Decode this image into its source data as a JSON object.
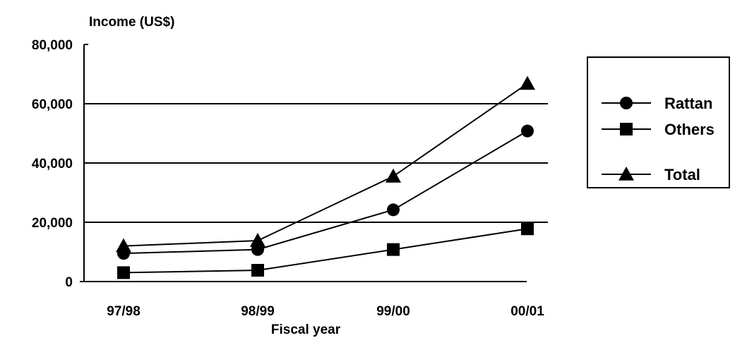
{
  "chart_data": {
    "type": "line",
    "ylabel": "Income (US$)",
    "xlabel": "Fiscal year",
    "categories": [
      "97/98",
      "98/99",
      "99/00",
      "00/01"
    ],
    "ylim": [
      0,
      80000
    ],
    "yticks": [
      0,
      20000,
      40000,
      60000,
      80000
    ],
    "ytick_labels": [
      "0",
      "20,000",
      "40,000",
      "60,000",
      "80,000"
    ],
    "grid": "horizontal at 20,000, 40,000 and 60,000",
    "legend_position": "right",
    "series": [
      {
        "name": "Rattan",
        "marker": "circle",
        "values": [
          9500,
          10800,
          24200,
          50800
        ]
      },
      {
        "name": "Others",
        "marker": "square",
        "values": [
          3000,
          3800,
          10800,
          17800
        ]
      },
      {
        "name": "Total",
        "marker": "triangle",
        "values": [
          12000,
          13800,
          35500,
          66800
        ]
      }
    ],
    "colors": {
      "line": "#000000",
      "marker": "#000000",
      "background": "#ffffff"
    }
  }
}
